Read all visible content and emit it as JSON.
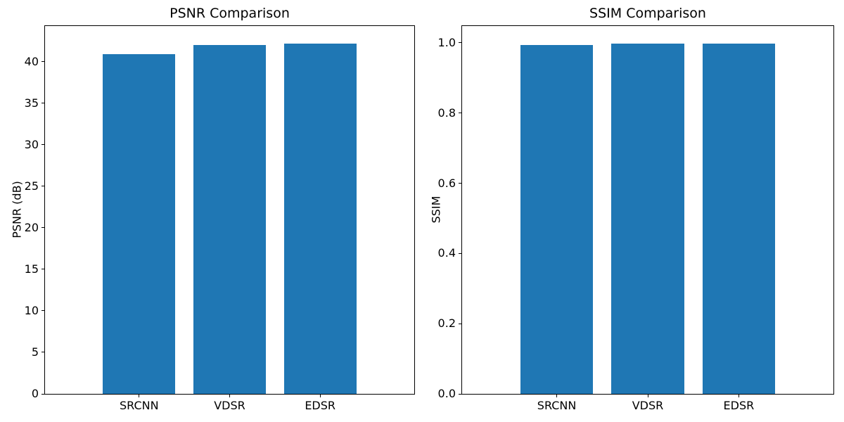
{
  "figure": {
    "background_color": "#ffffff",
    "text_color": "#000000",
    "spine_color": "#000000"
  },
  "chart_data": [
    {
      "type": "bar",
      "title": "PSNR Comparison",
      "xlabel": "",
      "ylabel": "PSNR (dB)",
      "categories": [
        "SRCNN",
        "VDSR",
        "EDSR"
      ],
      "values": [
        40.9,
        42.0,
        42.2
      ],
      "ylim": [
        0,
        44.3
      ],
      "yticks": [
        {
          "value": 0,
          "label": "0"
        },
        {
          "value": 5,
          "label": "5"
        },
        {
          "value": 10,
          "label": "10"
        },
        {
          "value": 15,
          "label": "15"
        },
        {
          "value": 20,
          "label": "20"
        },
        {
          "value": 25,
          "label": "25"
        },
        {
          "value": 30,
          "label": "30"
        },
        {
          "value": 35,
          "label": "35"
        },
        {
          "value": 40,
          "label": "40"
        }
      ],
      "bar_color": "#1f77b4",
      "grid": false,
      "legend": null
    },
    {
      "type": "bar",
      "title": "SSIM Comparison",
      "xlabel": "",
      "ylabel": "SSIM",
      "categories": [
        "SRCNN",
        "VDSR",
        "EDSR"
      ],
      "values": [
        0.994,
        0.997,
        0.998
      ],
      "ylim": [
        0,
        1.048
      ],
      "yticks": [
        {
          "value": 0.0,
          "label": "0.0"
        },
        {
          "value": 0.2,
          "label": "0.2"
        },
        {
          "value": 0.4,
          "label": "0.4"
        },
        {
          "value": 0.6,
          "label": "0.6"
        },
        {
          "value": 0.8,
          "label": "0.8"
        },
        {
          "value": 1.0,
          "label": "1.0"
        }
      ],
      "bar_color": "#1f77b4",
      "grid": false,
      "legend": null
    }
  ]
}
